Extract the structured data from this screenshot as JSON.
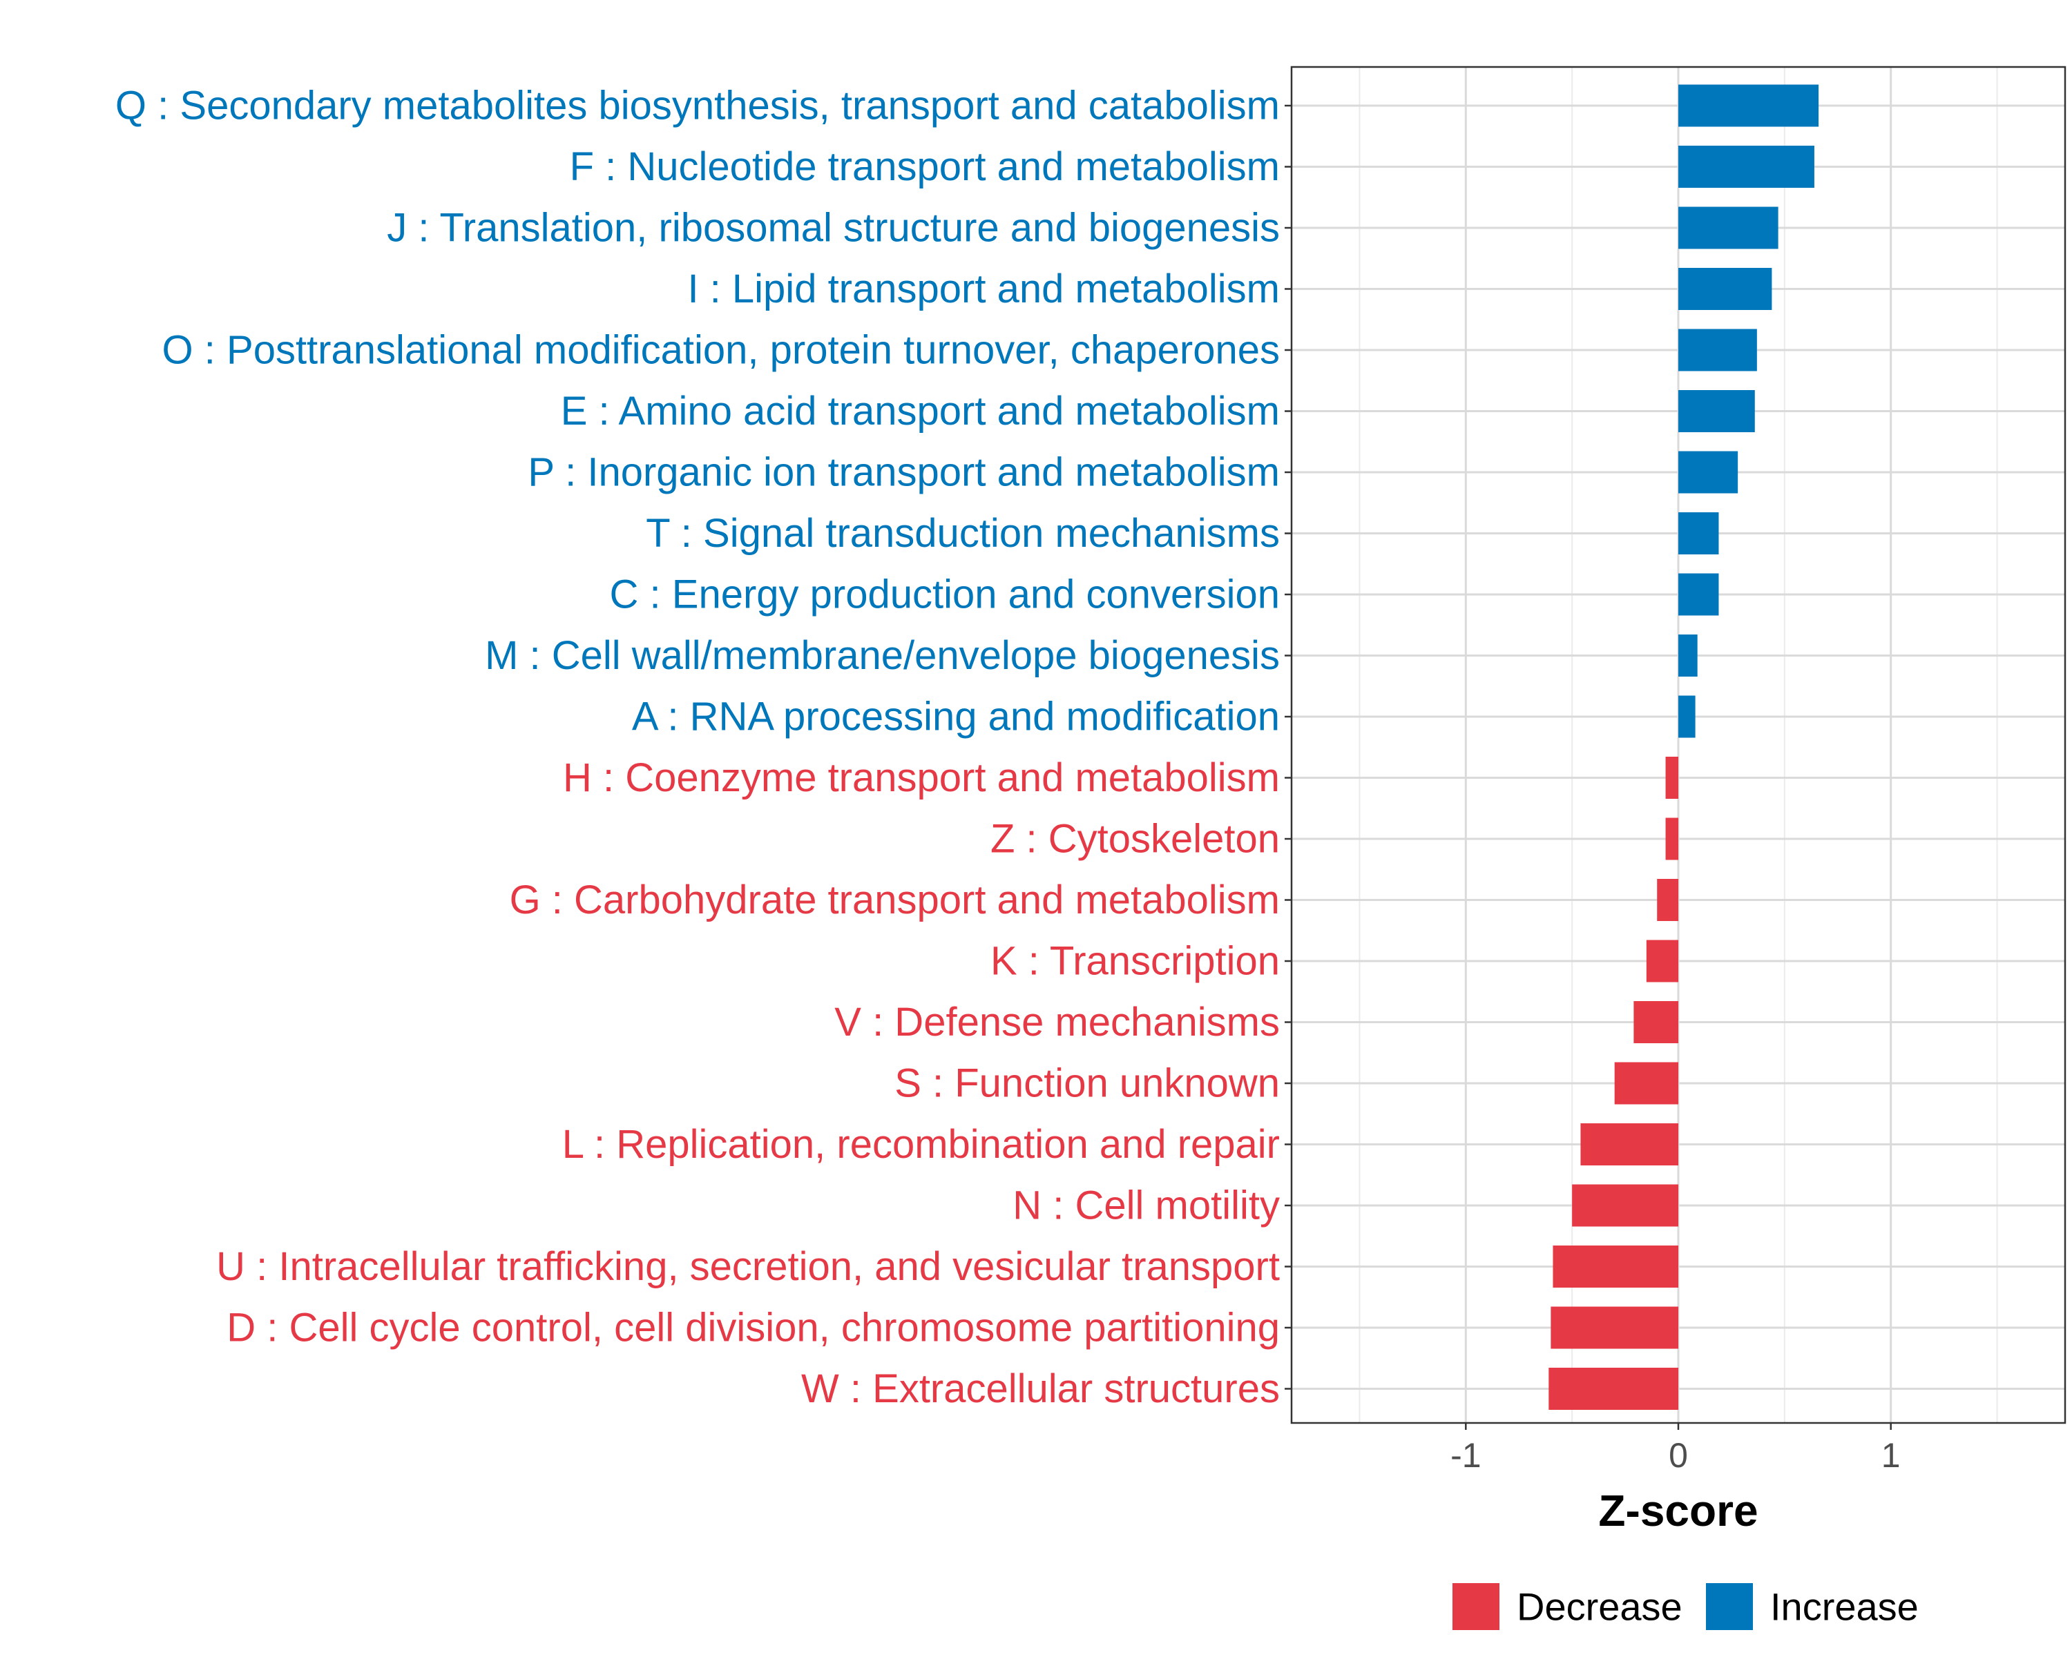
{
  "chart_data": {
    "type": "bar",
    "orientation": "horizontal",
    "xlabel": "Z-score",
    "xlim": [
      -1.82,
      1.82
    ],
    "xticks": [
      -1,
      0,
      1
    ],
    "xtick_labels": [
      "-1",
      "0",
      "1"
    ],
    "grid": true,
    "legend_position": "bottom",
    "colors": {
      "Decrease": "#E63946",
      "Increase": "#0077BB"
    },
    "legend": [
      {
        "label": "Decrease",
        "color": "#E63946"
      },
      {
        "label": "Increase",
        "color": "#0077BB"
      }
    ],
    "categories": [
      "Q : Secondary metabolites biosynthesis, transport and catabolism",
      "F : Nucleotide transport and metabolism",
      "J : Translation, ribosomal structure and biogenesis",
      "I : Lipid transport and metabolism",
      "O : Posttranslational modification, protein turnover, chaperones",
      "E : Amino acid transport and metabolism",
      "P : Inorganic ion transport and metabolism",
      "T : Signal transduction mechanisms",
      "C : Energy production and conversion",
      "M : Cell wall/membrane/envelope biogenesis",
      "A : RNA processing and modification",
      "H : Coenzyme transport and metabolism",
      "Z : Cytoskeleton",
      "G : Carbohydrate transport and metabolism",
      "K : Transcription",
      "V : Defense mechanisms",
      "S : Function unknown",
      "L : Replication, recombination and repair",
      "N : Cell motility",
      "U : Intracellular trafficking, secretion, and vesicular transport",
      "D : Cell cycle control, cell division, chromosome partitioning",
      "W : Extracellular structures"
    ],
    "values": [
      0.66,
      0.64,
      0.47,
      0.44,
      0.37,
      0.36,
      0.28,
      0.19,
      0.19,
      0.09,
      0.08,
      -0.06,
      -0.06,
      -0.1,
      -0.15,
      -0.21,
      -0.3,
      -0.46,
      -0.5,
      -0.59,
      -0.6,
      -0.61
    ],
    "groups": [
      "Increase",
      "Increase",
      "Increase",
      "Increase",
      "Increase",
      "Increase",
      "Increase",
      "Increase",
      "Increase",
      "Increase",
      "Increase",
      "Decrease",
      "Decrease",
      "Decrease",
      "Decrease",
      "Decrease",
      "Decrease",
      "Decrease",
      "Decrease",
      "Decrease",
      "Decrease",
      "Decrease"
    ]
  }
}
